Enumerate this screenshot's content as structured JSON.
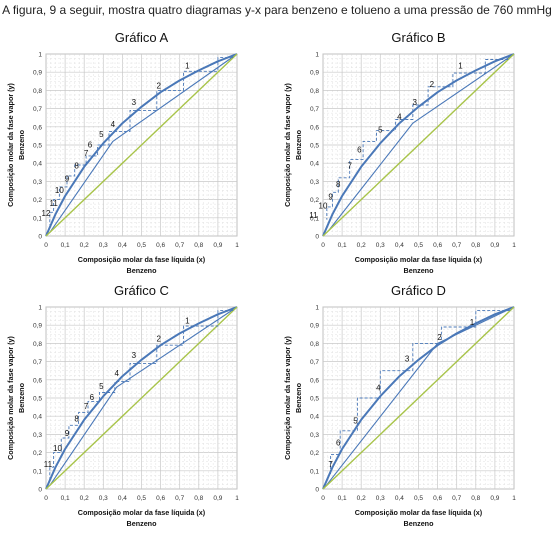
{
  "caption": "A figura, 9 a seguir, mostra quatro diagramas y-x para benzeno e tolueno a uma pressão de 760 mmHg",
  "colors": {
    "equilibrium": "#4a78b8",
    "operating": "#4a78b8",
    "diagonal": "#a8c44a",
    "grid": "#c8c8c8",
    "steps": "#4a78b8"
  },
  "chart_data": [
    {
      "type": "line",
      "title": "Gráfico A",
      "xlabel": "Composição molar da fase líquida (x)",
      "xlabel2": "Benzeno",
      "ylabel": "Composição molar da fase vapor (y)",
      "ylabel2": "Benzeno",
      "xlim": [
        0,
        1
      ],
      "ylim": [
        0,
        1
      ],
      "ticks": [
        "0",
        "0,1",
        "0,2",
        "0,3",
        "0,4",
        "0,5",
        "0,6",
        "0,7",
        "0,8",
        "0,9",
        "1"
      ],
      "grid": true,
      "series": [
        {
          "role": "equilibrium",
          "x": [
            0,
            0.05,
            0.1,
            0.2,
            0.3,
            0.4,
            0.5,
            0.6,
            0.7,
            0.8,
            0.9,
            1
          ],
          "y": [
            0,
            0.12,
            0.22,
            0.38,
            0.51,
            0.62,
            0.71,
            0.79,
            0.855,
            0.91,
            0.96,
            1
          ]
        },
        {
          "role": "operating",
          "x": [
            0.02,
            0.35,
            1
          ],
          "y": [
            0.02,
            0.52,
            1
          ]
        },
        {
          "role": "diagonal",
          "x": [
            0,
            1
          ],
          "y": [
            0,
            1
          ]
        }
      ],
      "stage_labels": [
        {
          "text": "1",
          "x": 0.74,
          "y": 0.92
        },
        {
          "text": "2",
          "x": 0.59,
          "y": 0.81
        },
        {
          "text": "3",
          "x": 0.46,
          "y": 0.72
        },
        {
          "text": "4",
          "x": 0.35,
          "y": 0.6
        },
        {
          "text": "5",
          "x": 0.29,
          "y": 0.545
        },
        {
          "text": "6",
          "x": 0.23,
          "y": 0.485
        },
        {
          "text": "7",
          "x": 0.21,
          "y": 0.44
        },
        {
          "text": "8",
          "x": 0.16,
          "y": 0.37
        },
        {
          "text": "9",
          "x": 0.11,
          "y": 0.3
        },
        {
          "text": "10",
          "x": 0.07,
          "y": 0.235
        },
        {
          "text": "11",
          "x": 0.04,
          "y": 0.165
        },
        {
          "text": "12",
          "x": 0.0,
          "y": 0.11
        }
      ],
      "steps": [
        [
          0.98,
          0.98
        ],
        [
          0.9,
          0.905
        ],
        [
          0.72,
          0.8
        ],
        [
          0.58,
          0.69
        ],
        [
          0.44,
          0.575
        ],
        [
          0.33,
          0.5
        ],
        [
          0.27,
          0.44
        ],
        [
          0.21,
          0.39
        ],
        [
          0.15,
          0.33
        ],
        [
          0.11,
          0.27
        ],
        [
          0.07,
          0.2
        ],
        [
          0.04,
          0.13
        ],
        [
          0.02,
          0.06
        ]
      ]
    },
    {
      "type": "line",
      "title": "Gráfico B",
      "xlabel": "Composição molar da fase líquida (x)",
      "xlabel2": "Benzeno",
      "ylabel": "Composição molar da fase vapor (y)",
      "ylabel2": "Benzeno",
      "xlim": [
        0,
        1
      ],
      "ylim": [
        0,
        1
      ],
      "ticks": [
        "0",
        "0,1",
        "0,2",
        "0,3",
        "0,4",
        "0,5",
        "0,6",
        "0,7",
        "0,8",
        "0,9",
        "1"
      ],
      "grid": true,
      "series": [
        {
          "role": "equilibrium",
          "x": [
            0,
            0.05,
            0.1,
            0.2,
            0.3,
            0.4,
            0.5,
            0.6,
            0.7,
            0.8,
            0.9,
            1
          ],
          "y": [
            0,
            0.12,
            0.22,
            0.38,
            0.51,
            0.62,
            0.71,
            0.79,
            0.855,
            0.91,
            0.96,
            1
          ]
        },
        {
          "role": "operating",
          "x": [
            0.03,
            0.47,
            1
          ],
          "y": [
            0.03,
            0.62,
            1
          ]
        },
        {
          "role": "diagonal",
          "x": [
            0,
            1
          ],
          "y": [
            0,
            1
          ]
        }
      ],
      "stage_labels": [
        {
          "text": "1",
          "x": 0.72,
          "y": 0.92
        },
        {
          "text": "2",
          "x": 0.57,
          "y": 0.82
        },
        {
          "text": "3",
          "x": 0.48,
          "y": 0.72
        },
        {
          "text": "4",
          "x": 0.4,
          "y": 0.64
        },
        {
          "text": "5",
          "x": 0.3,
          "y": 0.57
        },
        {
          "text": "6",
          "x": 0.19,
          "y": 0.46
        },
        {
          "text": "7",
          "x": 0.14,
          "y": 0.37
        },
        {
          "text": "8",
          "x": 0.08,
          "y": 0.27
        },
        {
          "text": "9",
          "x": 0.04,
          "y": 0.2
        },
        {
          "text": "10",
          "x": 0.0,
          "y": 0.15
        },
        {
          "text": "11",
          "x": -0.05,
          "y": 0.1
        }
      ],
      "steps": [
        [
          0.97,
          0.97
        ],
        [
          0.85,
          0.895
        ],
        [
          0.68,
          0.82
        ],
        [
          0.55,
          0.72
        ],
        [
          0.47,
          0.64
        ],
        [
          0.38,
          0.58
        ],
        [
          0.28,
          0.52
        ],
        [
          0.21,
          0.42
        ],
        [
          0.14,
          0.32
        ],
        [
          0.08,
          0.24
        ],
        [
          0.05,
          0.16
        ],
        [
          0.02,
          0.09
        ]
      ]
    },
    {
      "type": "line",
      "title": "Gráfico C",
      "xlabel": "Composição molar da fase líquida (x)",
      "xlabel2": "Benzeno",
      "ylabel": "Composição molar da fase vapor (y)",
      "ylabel2": "Benzeno",
      "xlim": [
        0,
        1
      ],
      "ylim": [
        0,
        1
      ],
      "ticks": [
        "0",
        "0,1",
        "0,2",
        "0,3",
        "0,4",
        "0,5",
        "0,6",
        "0,7",
        "0,8",
        "0,9",
        "1"
      ],
      "grid": true,
      "series": [
        {
          "role": "equilibrium",
          "x": [
            0,
            0.05,
            0.1,
            0.2,
            0.3,
            0.4,
            0.5,
            0.6,
            0.7,
            0.8,
            0.9,
            1
          ],
          "y": [
            0,
            0.12,
            0.22,
            0.38,
            0.51,
            0.62,
            0.71,
            0.79,
            0.855,
            0.91,
            0.96,
            1
          ]
        },
        {
          "role": "operating",
          "x": [
            0.02,
            0.37,
            1
          ],
          "y": [
            0.02,
            0.56,
            1
          ]
        },
        {
          "role": "diagonal",
          "x": [
            0,
            1
          ],
          "y": [
            0,
            1
          ]
        }
      ],
      "stage_labels": [
        {
          "text": "1",
          "x": 0.74,
          "y": 0.91
        },
        {
          "text": "2",
          "x": 0.59,
          "y": 0.81
        },
        {
          "text": "3",
          "x": 0.46,
          "y": 0.72
        },
        {
          "text": "4",
          "x": 0.37,
          "y": 0.62
        },
        {
          "text": "5",
          "x": 0.29,
          "y": 0.55
        },
        {
          "text": "6",
          "x": 0.24,
          "y": 0.49
        },
        {
          "text": "7",
          "x": 0.21,
          "y": 0.44
        },
        {
          "text": "8",
          "x": 0.16,
          "y": 0.37
        },
        {
          "text": "9",
          "x": 0.11,
          "y": 0.29
        },
        {
          "text": "10",
          "x": 0.06,
          "y": 0.21
        },
        {
          "text": "11",
          "x": 0.01,
          "y": 0.12
        }
      ],
      "steps": [
        [
          0.98,
          0.98
        ],
        [
          0.9,
          0.895
        ],
        [
          0.72,
          0.79
        ],
        [
          0.58,
          0.69
        ],
        [
          0.44,
          0.59
        ],
        [
          0.36,
          0.53
        ],
        [
          0.28,
          0.48
        ],
        [
          0.22,
          0.42
        ],
        [
          0.17,
          0.35
        ],
        [
          0.12,
          0.28
        ],
        [
          0.08,
          0.2
        ],
        [
          0.04,
          0.12
        ],
        [
          0.02,
          0.05
        ]
      ]
    },
    {
      "type": "line",
      "title": "Gráfico D",
      "xlabel": "Composição molar da fase líquida (x)",
      "xlabel2": "Benzeno",
      "ylabel": "Composição molar da fase vapor (y)",
      "ylabel2": "Benzeno",
      "xlim": [
        0,
        1
      ],
      "ylim": [
        0,
        1
      ],
      "ticks": [
        "0",
        "0,1",
        "0,2",
        "0,3",
        "0,4",
        "0,5",
        "0,6",
        "0,7",
        "0,8",
        "0,9",
        "1"
      ],
      "grid": true,
      "series": [
        {
          "role": "equilibrium",
          "x": [
            0,
            0.05,
            0.1,
            0.2,
            0.3,
            0.4,
            0.5,
            0.6,
            0.7,
            0.8,
            0.9,
            1
          ],
          "y": [
            0,
            0.12,
            0.22,
            0.38,
            0.51,
            0.62,
            0.71,
            0.79,
            0.855,
            0.91,
            0.96,
            1
          ]
        },
        {
          "role": "operating",
          "x": [
            0.01,
            0.6,
            1
          ],
          "y": [
            0.01,
            0.8,
            1
          ]
        },
        {
          "role": "diagonal",
          "x": [
            0,
            1
          ],
          "y": [
            0,
            1
          ]
        }
      ],
      "stage_labels": [
        {
          "text": "1",
          "x": 0.78,
          "y": 0.9
        },
        {
          "text": "2",
          "x": 0.61,
          "y": 0.82
        },
        {
          "text": "3",
          "x": 0.44,
          "y": 0.7
        },
        {
          "text": "4",
          "x": 0.29,
          "y": 0.54
        },
        {
          "text": "5",
          "x": 0.17,
          "y": 0.36
        },
        {
          "text": "6",
          "x": 0.08,
          "y": 0.24
        },
        {
          "text": "7",
          "x": 0.04,
          "y": 0.12
        }
      ],
      "steps": [
        [
          0.98,
          0.98
        ],
        [
          0.8,
          0.89
        ],
        [
          0.62,
          0.8
        ],
        [
          0.47,
          0.65
        ],
        [
          0.3,
          0.5
        ],
        [
          0.18,
          0.32
        ],
        [
          0.09,
          0.19
        ],
        [
          0.04,
          0.08
        ]
      ]
    }
  ]
}
